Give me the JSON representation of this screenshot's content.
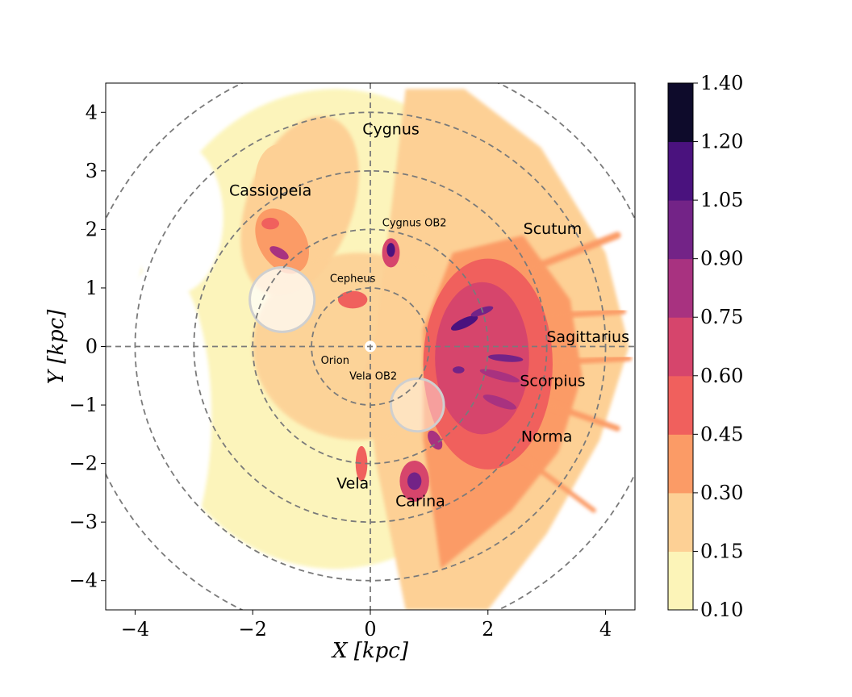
{
  "chart_data": {
    "type": "heatmap",
    "title": "",
    "xlabel": "X [kpc]",
    "ylabel": "Y [kpc]",
    "xlim": [
      -4.5,
      4.5
    ],
    "ylim": [
      -4.5,
      4.5
    ],
    "xticks": [
      -4,
      -2,
      0,
      2,
      4
    ],
    "yticks": [
      -4,
      -3,
      -2,
      -1,
      0,
      1,
      2,
      3,
      4
    ],
    "xtick_labels": [
      "−4",
      "−2",
      "0",
      "2",
      "4"
    ],
    "ytick_labels": [
      "−4",
      "−3",
      "−2",
      "−1",
      "0",
      "1",
      "2",
      "3",
      "4"
    ],
    "guide_circle_radii_kpc": [
      1,
      2,
      3,
      4,
      5
    ],
    "crosshair": true,
    "colorbar": {
      "levels": [
        0.1,
        0.15,
        0.3,
        0.45,
        0.6,
        0.75,
        0.9,
        1.05,
        1.2,
        1.4
      ],
      "labels": [
        "0.10",
        "0.15",
        "0.30",
        "0.45",
        "0.60",
        "0.75",
        "0.90",
        "1.05",
        "1.20",
        "1.40"
      ],
      "colors": [
        "#fcf4b8",
        "#fdd095",
        "#fb9b66",
        "#f0605d",
        "#d6456c",
        "#a83280",
        "#732387",
        "#4a127e",
        "#0e0b2b"
      ]
    },
    "regions": [
      {
        "name": "Cygnus",
        "x": 0.35,
        "y": 3.7,
        "size": "large"
      },
      {
        "name": "Cassiopeia",
        "x": -1.7,
        "y": 2.65,
        "size": "large"
      },
      {
        "name": "Cygnus OB2",
        "x": 0.75,
        "y": 2.1,
        "size": "small"
      },
      {
        "name": "Scutum",
        "x": 3.1,
        "y": 2.0,
        "size": "large"
      },
      {
        "name": "Cepheus",
        "x": -0.3,
        "y": 1.15,
        "size": "small"
      },
      {
        "name": "Sagittarius",
        "x": 3.7,
        "y": 0.15,
        "size": "large"
      },
      {
        "name": "Orion",
        "x": -0.6,
        "y": -0.25,
        "size": "small"
      },
      {
        "name": "Vela OB2",
        "x": 0.05,
        "y": -0.52,
        "size": "small"
      },
      {
        "name": "Scorpius",
        "x": 3.1,
        "y": -0.6,
        "size": "large"
      },
      {
        "name": "Norma",
        "x": 3.0,
        "y": -1.55,
        "size": "large"
      },
      {
        "name": "Vela",
        "x": -0.3,
        "y": -2.35,
        "size": "large"
      },
      {
        "name": "Carina",
        "x": 0.85,
        "y": -2.65,
        "size": "large"
      }
    ],
    "masked_circles": [
      {
        "x": -1.5,
        "y": 0.8,
        "r": 0.55,
        "color": "#ffffff",
        "opacity": 0.7,
        "edge": "#cfcfcf"
      },
      {
        "x": 0.8,
        "y": -1.0,
        "r": 0.45,
        "color": "#ffffff",
        "opacity": 0.4,
        "edge": "#cfcfcf"
      }
    ],
    "density_blobs": [
      {
        "x": -1.3,
        "y": 2.5,
        "rx": 0.6,
        "ry": 1.0,
        "angle": 20,
        "level": 0.15
      },
      {
        "x": -1.5,
        "y": 1.8,
        "rx": 0.4,
        "ry": 0.6,
        "angle": 30,
        "level": 0.3
      },
      {
        "x": -1.55,
        "y": 1.6,
        "rx": 0.18,
        "ry": 0.08,
        "angle": -30,
        "level": 0.75
      },
      {
        "x": -1.7,
        "y": 2.1,
        "rx": 0.15,
        "ry": 0.1,
        "angle": 0,
        "level": 0.45
      },
      {
        "x": 0.35,
        "y": 1.6,
        "rx": 0.15,
        "ry": 0.25,
        "angle": 0,
        "level": 0.6
      },
      {
        "x": 0.35,
        "y": 1.65,
        "rx": 0.07,
        "ry": 0.12,
        "angle": 0,
        "level": 1.05
      },
      {
        "x": -0.3,
        "y": 0.8,
        "rx": 0.25,
        "ry": 0.15,
        "angle": 0,
        "level": 0.45
      },
      {
        "x": 2.0,
        "y": -0.3,
        "rx": 1.1,
        "ry": 1.8,
        "angle": 0,
        "level": 0.45
      },
      {
        "x": 1.9,
        "y": -0.2,
        "rx": 0.8,
        "ry": 1.3,
        "angle": 0,
        "level": 0.6
      },
      {
        "x": 1.6,
        "y": 0.4,
        "rx": 0.25,
        "ry": 0.08,
        "angle": 25,
        "level": 1.05
      },
      {
        "x": 1.9,
        "y": 0.6,
        "rx": 0.2,
        "ry": 0.06,
        "angle": 20,
        "level": 0.9
      },
      {
        "x": 2.3,
        "y": -0.2,
        "rx": 0.3,
        "ry": 0.06,
        "angle": -5,
        "level": 0.9
      },
      {
        "x": 2.2,
        "y": -0.5,
        "rx": 0.35,
        "ry": 0.07,
        "angle": -15,
        "level": 0.75
      },
      {
        "x": 2.2,
        "y": -0.95,
        "rx": 0.3,
        "ry": 0.08,
        "angle": -20,
        "level": 0.75
      },
      {
        "x": 1.5,
        "y": -0.4,
        "rx": 0.1,
        "ry": 0.06,
        "angle": 0,
        "level": 0.9
      },
      {
        "x": 0.75,
        "y": -2.3,
        "rx": 0.25,
        "ry": 0.35,
        "angle": 0,
        "level": 0.6
      },
      {
        "x": 0.75,
        "y": -2.3,
        "rx": 0.12,
        "ry": 0.15,
        "angle": 0,
        "level": 0.9
      },
      {
        "x": 1.1,
        "y": -1.6,
        "rx": 0.1,
        "ry": 0.18,
        "angle": 30,
        "level": 0.75
      },
      {
        "x": -0.15,
        "y": -2.0,
        "rx": 0.1,
        "ry": 0.3,
        "angle": 0,
        "level": 0.45
      }
    ]
  }
}
